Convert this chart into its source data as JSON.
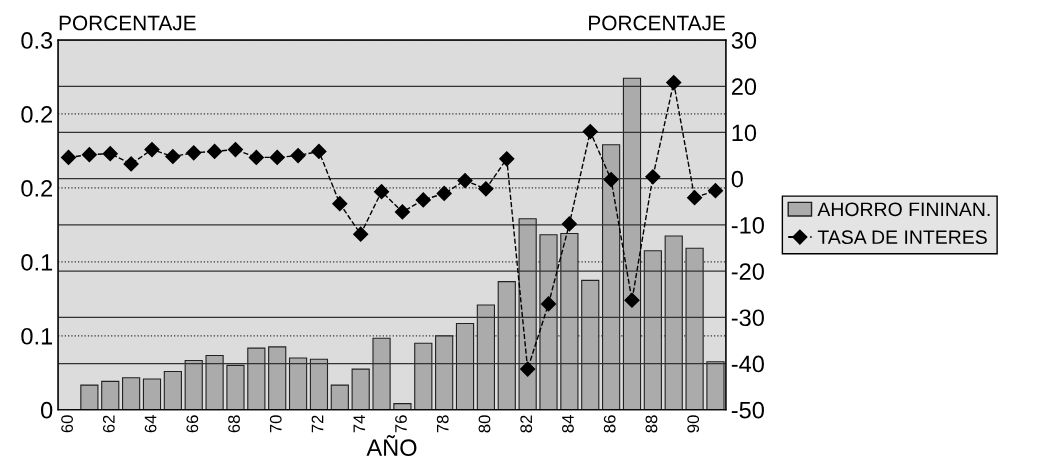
{
  "chart_data": {
    "type": "bar",
    "xlabel": "AÑO",
    "ylabel": "PORCENTAJE",
    "y2label": "PORCENTAJE",
    "categories": [
      "60",
      null,
      "62",
      null,
      "64",
      null,
      "66",
      null,
      "68",
      null,
      "70",
      null,
      "72",
      null,
      "74",
      null,
      "76",
      null,
      "78",
      null,
      "80",
      null,
      "82",
      null,
      "84",
      null,
      "86",
      null,
      "88",
      null,
      "90",
      null
    ],
    "series": [
      {
        "name": "AHORRO FININAN.",
        "color": "#ababab",
        "values": [
          null,
          0.02,
          0.023,
          0.026,
          0.025,
          0.031,
          0.04,
          0.044,
          0.036,
          0.05,
          0.051,
          0.042,
          0.041,
          0.02,
          0.033,
          0.058,
          0.005,
          0.054,
          0.06,
          0.07,
          0.085,
          0.104,
          0.155,
          0.142,
          0.143,
          0.105,
          0.215,
          0.269,
          0.129,
          0.141,
          0.131,
          0.039
        ]
      },
      {
        "name": "TASA DE INTERES",
        "type": "line",
        "axis": "y2",
        "color": "#000000",
        "marker": "diamond",
        "line_style": "dashed",
        "values": [
          4.6,
          5.2,
          5.4,
          3.2,
          6.3,
          4.8,
          5.6,
          5.9,
          6.3,
          4.6,
          4.6,
          5.0,
          5.9,
          -5.4,
          -12.0,
          -2.8,
          -7.2,
          -4.6,
          -3.2,
          -0.4,
          -2.2,
          4.3,
          -41.2,
          -27.1,
          -9.8,
          10.2,
          -0.2,
          -26.3,
          0.4,
          20.8,
          -4.1,
          -2.6
        ]
      }
    ],
    "ylim": [
      0,
      0.3
    ],
    "yticks": [
      0,
      {
        "value": 0.06,
        "label": "0.1"
      },
      {
        "value": 0.12,
        "label": "0.1"
      },
      {
        "value": 0.18,
        "label": "0.2"
      },
      {
        "value": 0.24,
        "label": "0.2"
      },
      0.3
    ],
    "y2lim": [
      -50,
      30
    ],
    "y2ticks": [
      -50,
      -40,
      -30,
      -20,
      -10,
      0,
      10,
      20,
      30
    ],
    "grid": true,
    "legend": "right"
  }
}
